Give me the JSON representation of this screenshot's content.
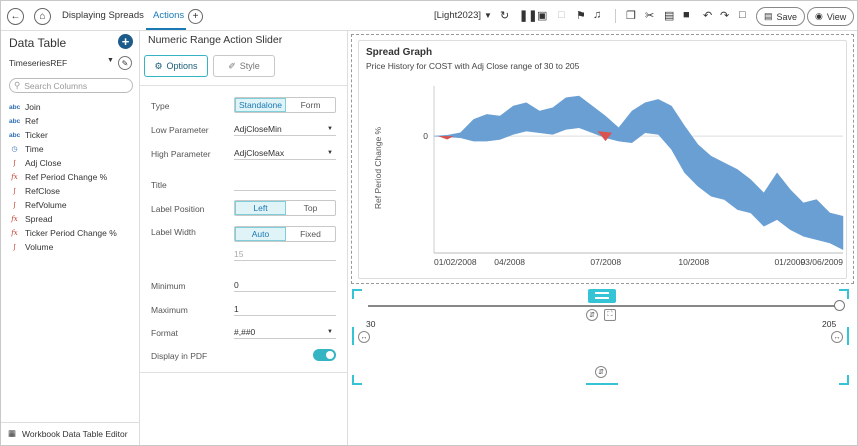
{
  "topbar": {
    "tabs": [
      {
        "label": "Displaying Spreads"
      },
      {
        "label": "Actions"
      }
    ],
    "theme": "[Light2023]",
    "save_label": "Save",
    "view_label": "View"
  },
  "left_panel": {
    "title": "Data Table",
    "datasource": "TimeseriesREF",
    "search_placeholder": "Search Columns",
    "columns": [
      {
        "label": "Join",
        "type": "abc"
      },
      {
        "label": "Ref",
        "type": "abc"
      },
      {
        "label": "Ticker",
        "type": "abc"
      },
      {
        "label": "Time",
        "type": "time"
      },
      {
        "label": "Adj Close",
        "type": "numeric"
      },
      {
        "label": "Ref Period Change %",
        "type": "fx"
      },
      {
        "label": "RefClose",
        "type": "numeric"
      },
      {
        "label": "RefVolume",
        "type": "numeric"
      },
      {
        "label": "Spread",
        "type": "fx"
      },
      {
        "label": "Ticker Period Change %",
        "type": "fx"
      },
      {
        "label": "Volume",
        "type": "numeric"
      }
    ],
    "footer": "Workbook Data Table Editor"
  },
  "settings": {
    "title": "Numeric Range Action Slider",
    "tab_options": "Options",
    "tab_style": "Style",
    "type_label": "Type",
    "type_opt1": "Standalone",
    "type_opt2": "Form",
    "low_label": "Low Parameter",
    "low_value": "AdjCloseMin",
    "high_label": "High Parameter",
    "high_value": "AdjCloseMax",
    "title_label": "Title",
    "title_value": "",
    "labelpos_label": "Label Position",
    "labelpos_opt1": "Left",
    "labelpos_opt2": "Top",
    "labelwidth_label": "Label Width",
    "labelwidth_opt1": "Auto",
    "labelwidth_opt2": "Fixed",
    "labelwidth_value": "15",
    "min_label": "Minimum",
    "min_value": "0",
    "max_label": "Maximum",
    "max_value": "1",
    "format_label": "Format",
    "format_value": "#,##0",
    "pdf_label": "Display in PDF",
    "pdf_on": true
  },
  "chart": {
    "title": "Spread Graph",
    "subtitle": "Price History for COST with Adj Close range of 30 to 205",
    "ylabel": "Ref Period Change %",
    "ytick": "0",
    "xticks": [
      "01/02/2008",
      "04/2008",
      "07/2008",
      "10/2008",
      "01/2009",
      "03/06/2009"
    ],
    "colors": {
      "positive": "#6a9fd4",
      "negative": "#d9534f",
      "axis": "#999"
    }
  },
  "chart_data": {
    "type": "area",
    "title": "Spread Graph",
    "subtitle": "Price History for COST with Adj Close range of 30 to 205",
    "xlabel": "",
    "ylabel": "Ref Period Change %",
    "x_tick_labels": [
      "01/02/2008",
      "04/2008",
      "07/2008",
      "10/2008",
      "01/2009",
      "03/06/2009"
    ],
    "y_tick_labels": [
      "0"
    ],
    "upper": [
      0,
      0.5,
      2,
      10,
      13,
      12,
      18,
      20,
      15,
      17,
      23,
      24,
      18,
      12,
      5,
      15,
      20,
      22,
      18,
      6,
      -5,
      -12,
      -16,
      -20,
      -26,
      -34,
      -22,
      -32,
      -40,
      -38,
      -46,
      -48
    ],
    "lower": [
      0,
      -0.5,
      -1,
      -3,
      -3,
      -2,
      1,
      3,
      2,
      1,
      4,
      5,
      2,
      -1,
      -3,
      -4,
      2,
      1,
      -8,
      -22,
      -30,
      -36,
      -38,
      -44,
      -46,
      -54,
      -50,
      -56,
      -60,
      -62,
      -64,
      -68
    ],
    "ylim": [
      -70,
      30
    ]
  },
  "slider": {
    "min_label": "30",
    "max_label": "205",
    "value_low": 30,
    "value_high": 205
  }
}
